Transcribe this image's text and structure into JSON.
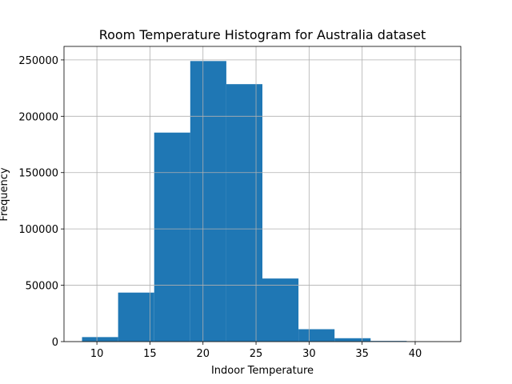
{
  "chart_data": {
    "type": "bar",
    "title": "Room Temperature Histogram for Australia dataset",
    "xlabel": "Indoor Temperature",
    "ylabel": "Frequency",
    "bin_edges": [
      8.6,
      12.0,
      15.4,
      18.8,
      22.2,
      25.6,
      29.0,
      32.4,
      35.8,
      39.2,
      42.6
    ],
    "values": [
      4000,
      43500,
      185500,
      249000,
      228500,
      56000,
      11000,
      3000,
      600,
      200
    ],
    "xlim": [
      6.9,
      44.3
    ],
    "ylim": [
      0,
      262000
    ],
    "xticks": [
      10,
      15,
      20,
      25,
      30,
      35,
      40
    ],
    "yticks": [
      0,
      50000,
      100000,
      150000,
      200000,
      250000
    ],
    "grid": true,
    "bar_color": "#1f77b4"
  }
}
